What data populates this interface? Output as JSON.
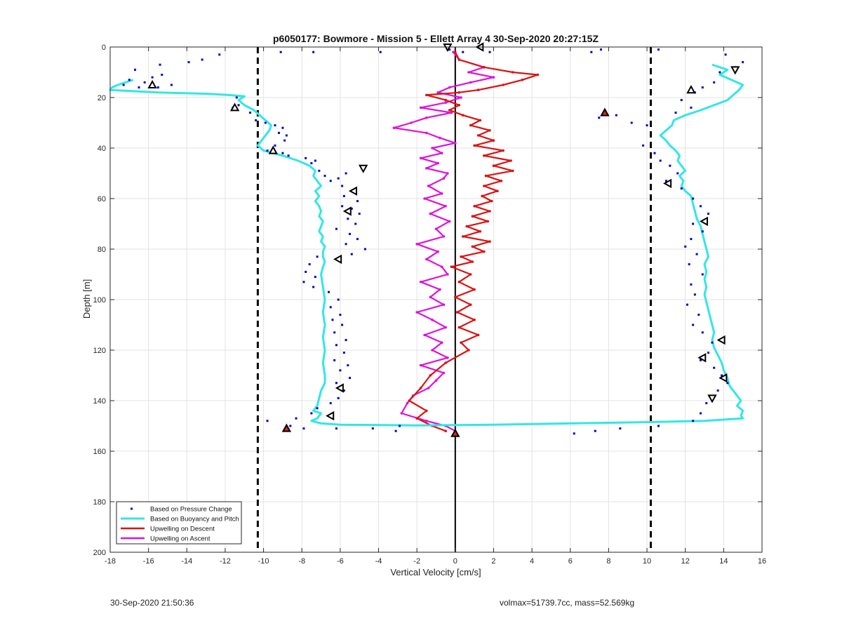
{
  "footer": {
    "timestamp": "30-Sep-2020 21:50:36",
    "info": "volmax=51739.7cc, mass=52.569kg"
  },
  "chart_data": {
    "type": "line",
    "title": "p6050177: Bowmore - Mission 5 - Ellett Array 4 30-Sep-2020 20:27:15Z",
    "xlabel": "Vertical Velocity [cm/s]",
    "ylabel": "Depth [m]",
    "xlim": [
      -18,
      16
    ],
    "ylim": [
      0,
      200
    ],
    "y_reversed": true,
    "grid": true,
    "xticks": [
      "-18",
      "-16",
      "-14",
      "-12",
      "-10",
      "-8",
      "-6",
      "-4",
      "-2",
      "0",
      "2",
      "4",
      "6",
      "8",
      "10",
      "12",
      "14",
      "16"
    ],
    "yticks": [
      "0",
      "20",
      "40",
      "60",
      "80",
      "100",
      "120",
      "140",
      "160",
      "180",
      "200"
    ],
    "legend": {
      "placement": "bottom-left",
      "entries": [
        "Based on Pressure Change",
        "Based on Buoyancy and Pitch",
        "Upwelling on Descent",
        "Upwelling on Ascent"
      ]
    },
    "colors": {
      "pressure": "#0000cc",
      "buoyancy": "#33e6e6",
      "descent": "#dd1111",
      "ascent": "#dd11dd",
      "grid": "#e3e3e3",
      "axis": "#262626"
    },
    "reference_lines": {
      "dashed_x": [
        -10.3,
        10.2
      ],
      "solid_x": [
        0
      ]
    },
    "series": [
      {
        "name": "Based on Buoyancy and Pitch",
        "x": [
          -16.8,
          -17.2,
          -17.6,
          -17.9,
          -18.0,
          -15.5,
          -13.0,
          -11.8,
          -11.0,
          -11.3,
          -11.0,
          -10.5,
          -10.2,
          -9.9,
          -9.6,
          -9.7,
          -9.9,
          -10.1,
          -10.3,
          -10.0,
          -9.0,
          -8.2,
          -7.6,
          -7.3,
          -7.4,
          -7.2,
          -7.0,
          -7.3,
          -7.1,
          -7.3,
          -7.1,
          -7.0,
          -7.1,
          -6.9,
          -7.0,
          -7.1,
          -6.9,
          -7.0,
          -6.8,
          -6.9,
          -6.9,
          -6.8,
          -6.9,
          -7.0,
          -6.9,
          -6.8,
          -6.9,
          -6.8,
          -6.9,
          -6.8,
          -6.9,
          -6.8,
          -6.8,
          -7.0,
          -7.1,
          -7.2,
          -7.4,
          -7.0,
          -7.2,
          -7.5,
          -7.0,
          -6.0,
          -2.0,
          2.0,
          6.0,
          10.0,
          13.0,
          15.0,
          14.9,
          15.0,
          14.7,
          14.9,
          14.6,
          14.3,
          14.2,
          14.0,
          13.9,
          13.7,
          13.5,
          13.4,
          13.5,
          13.4,
          13.3,
          13.2,
          13.1,
          13.0,
          13.1,
          13.0,
          13.1,
          13.0,
          13.2,
          13.1,
          13.0,
          12.9,
          12.8,
          12.6,
          12.5,
          12.4,
          12.3,
          12.0,
          11.8,
          11.9,
          11.7,
          12.0,
          11.8,
          11.6,
          11.7,
          11.5,
          11.2,
          11.0,
          10.7,
          11.0,
          11.3,
          11.4,
          12.0,
          12.8,
          13.5,
          14.2,
          14.5,
          14.8,
          15.0,
          14.4,
          13.8,
          14.2,
          13.4
        ],
        "y": [
          13,
          14,
          15,
          16,
          17,
          18,
          18.5,
          19,
          19.5,
          21,
          23,
          25,
          27,
          29,
          31,
          33,
          35,
          37,
          39,
          41,
          43,
          45,
          47,
          49,
          51,
          53,
          55,
          57,
          59,
          61,
          63,
          65,
          67,
          69,
          71,
          73,
          75,
          77,
          79,
          81,
          83,
          85,
          87,
          90,
          95,
          100,
          105,
          110,
          115,
          120,
          125,
          130,
          133,
          136,
          139,
          142,
          144,
          145,
          147,
          148,
          149,
          149.5,
          149.8,
          149.5,
          149,
          148.5,
          148,
          147,
          146,
          144,
          142,
          140,
          137,
          134,
          131,
          128,
          125,
          122,
          119,
          116,
          113,
          110,
          107,
          104,
          101,
          98,
          95,
          92,
          89,
          86,
          83,
          80,
          77,
          74,
          71,
          68,
          65,
          62,
          59,
          57,
          55,
          53,
          51,
          49,
          47,
          45,
          43,
          41,
          39,
          37,
          35,
          33,
          31,
          29,
          27,
          25,
          23,
          21,
          19,
          17,
          15,
          13,
          11,
          9,
          7
        ]
      },
      {
        "name": "Upwelling on Descent",
        "x": [
          0.0,
          0.2,
          1.5,
          3.0,
          4.3,
          3.5,
          2.5,
          1.2,
          0.2,
          -1.5,
          -0.5,
          0.2,
          -0.3,
          0.4,
          1.3,
          0.8,
          1.8,
          1.2,
          2.0,
          1.0,
          2.5,
          1.5,
          2.9,
          2.0,
          3.0,
          1.6,
          2.4,
          1.5,
          2.2,
          1.4,
          1.9,
          1.0,
          1.8,
          0.9,
          1.7,
          0.6,
          1.3,
          0.4,
          1.8,
          0.9,
          1.5,
          0.3,
          0.9,
          -0.2,
          0.8,
          0.2,
          1.0,
          0.0,
          0.8,
          0.1,
          1.0,
          0.2,
          1.2,
          0.3,
          0.7,
          -0.5,
          -1.3,
          -1.8,
          -2.4,
          -1.5,
          -2.0,
          -1.2,
          -0.5
        ],
        "y": [
          2,
          5,
          8,
          10,
          11,
          13,
          15,
          17,
          18,
          19,
          21,
          23,
          25,
          27,
          29,
          31,
          33,
          35,
          37,
          39,
          41,
          43,
          45,
          47,
          49,
          51,
          53,
          55,
          57,
          59,
          61,
          63,
          65,
          67,
          69,
          71,
          73,
          75,
          77,
          79,
          81,
          83,
          85,
          87,
          90,
          93,
          96,
          99,
          102,
          105,
          108,
          111,
          114,
          117,
          120,
          125,
          130,
          135,
          140,
          144,
          147,
          150,
          152
        ]
      },
      {
        "name": "Upwelling on Ascent",
        "x": [
          -0.1,
          0.2,
          1.5,
          0.7,
          2.0,
          0.8,
          -0.3,
          -0.9,
          0.3,
          -0.5,
          -1.8,
          -0.2,
          -1.5,
          -2.3,
          -3.2,
          -1.5,
          -0.8,
          0.0,
          -1.2,
          -0.7,
          -1.8,
          -0.9,
          -1.5,
          -0.4,
          -0.6,
          -1.4,
          -0.7,
          -1.6,
          -0.5,
          -1.3,
          -0.3,
          -1.0,
          -0.6,
          -2.0,
          -0.9,
          -1.5,
          -0.7,
          -0.4,
          -1.8,
          -0.8,
          -1.3,
          -0.6,
          -2.0,
          -1.2,
          -0.5,
          -1.6,
          -0.7,
          -1.2,
          -0.4,
          -1.8,
          -0.6,
          -1.0,
          -1.4,
          -2.2,
          -2.5,
          -2.8,
          -1.5,
          -0.5,
          0.0
        ],
        "y": [
          2,
          5,
          8,
          10,
          12,
          14,
          16,
          18,
          20,
          22,
          24,
          26,
          28,
          30,
          32,
          34,
          36,
          38,
          40,
          42,
          44,
          46,
          48,
          50,
          52,
          55,
          58,
          60,
          63,
          66,
          69,
          72,
          75,
          78,
          81,
          84,
          87,
          90,
          93,
          96,
          99,
          102,
          105,
          108,
          111,
          114,
          117,
          120,
          123,
          126,
          129,
          132,
          135,
          138,
          141,
          145,
          148,
          150,
          152
        ]
      }
    ],
    "scatter": {
      "name": "Based on Pressure Change",
      "points": [
        [
          -16.7,
          9
        ],
        [
          -15.4,
          7
        ],
        [
          -15.3,
          11
        ],
        [
          -15.8,
          12
        ],
        [
          -16.2,
          14
        ],
        [
          -17.0,
          13
        ],
        [
          -17.3,
          15
        ],
        [
          -16.5,
          16
        ],
        [
          -14.8,
          15
        ],
        [
          -13.9,
          6
        ],
        [
          -13.2,
          5
        ],
        [
          -12.3,
          3
        ],
        [
          -15.5,
          16
        ],
        [
          -11.4,
          20
        ],
        [
          -11.3,
          23
        ],
        [
          -11.6,
          24
        ],
        [
          -10.7,
          26
        ],
        [
          -10.4,
          29
        ],
        [
          -9.9,
          30
        ],
        [
          -9.4,
          31
        ],
        [
          -9.0,
          32
        ],
        [
          -9.2,
          34
        ],
        [
          -8.8,
          35
        ],
        [
          -8.9,
          37
        ],
        [
          -9.4,
          39
        ],
        [
          -9.8,
          41
        ],
        [
          -9.0,
          42
        ],
        [
          -8.7,
          43
        ],
        [
          -7.8,
          44
        ],
        [
          -7.5,
          46
        ],
        [
          -7.3,
          45
        ],
        [
          -7.1,
          49
        ],
        [
          -6.8,
          51
        ],
        [
          -6.5,
          53
        ],
        [
          -6.1,
          52
        ],
        [
          -5.7,
          50
        ],
        [
          -5.9,
          55
        ],
        [
          -5.3,
          57
        ],
        [
          -5.8,
          59
        ],
        [
          -5.1,
          61
        ],
        [
          -5.9,
          63
        ],
        [
          -5.4,
          64
        ],
        [
          -5.0,
          66
        ],
        [
          -5.6,
          68
        ],
        [
          -5.2,
          70
        ],
        [
          -6.2,
          72
        ],
        [
          -5.5,
          74
        ],
        [
          -5.1,
          76
        ],
        [
          -5.7,
          78
        ],
        [
          -4.7,
          80
        ],
        [
          -5.4,
          82
        ],
        [
          -6.1,
          84
        ],
        [
          -7.2,
          83
        ],
        [
          -7.6,
          86
        ],
        [
          -7.8,
          89
        ],
        [
          -7.3,
          91
        ],
        [
          -7.9,
          93
        ],
        [
          -7.4,
          95
        ],
        [
          -6.6,
          97
        ],
        [
          -6.1,
          100
        ],
        [
          -6.5,
          103
        ],
        [
          -6.0,
          106
        ],
        [
          -6.4,
          108
        ],
        [
          -5.9,
          110
        ],
        [
          -6.3,
          113
        ],
        [
          -5.7,
          116
        ],
        [
          -6.2,
          118
        ],
        [
          -5.8,
          121
        ],
        [
          -6.3,
          124
        ],
        [
          -5.6,
          126
        ],
        [
          -6.0,
          128
        ],
        [
          -5.5,
          131
        ],
        [
          -6.2,
          133
        ],
        [
          -5.8,
          136
        ],
        [
          -6.1,
          139
        ],
        [
          -6.5,
          141
        ],
        [
          -7.2,
          143
        ],
        [
          -7.5,
          145
        ],
        [
          -8.3,
          147
        ],
        [
          -9.8,
          148
        ],
        [
          -8.6,
          150
        ],
        [
          -7.9,
          151
        ],
        [
          -6.2,
          151
        ],
        [
          -4.3,
          151
        ],
        [
          -3.1,
          152
        ],
        [
          -2.9,
          150
        ],
        [
          -9.1,
          2
        ],
        [
          -7.4,
          2
        ],
        [
          -3.9,
          2
        ],
        [
          -0.3,
          1
        ],
        [
          0.4,
          2
        ],
        [
          1.8,
          2
        ],
        [
          7.1,
          2
        ],
        [
          7.6,
          1
        ],
        [
          10.6,
          1
        ],
        [
          7.5,
          28
        ],
        [
          8.4,
          27
        ],
        [
          9.2,
          30
        ],
        [
          10.0,
          31
        ],
        [
          9.8,
          39
        ],
        [
          10.4,
          42
        ],
        [
          10.7,
          45
        ],
        [
          11.2,
          47
        ],
        [
          11.6,
          50
        ],
        [
          11.0,
          53
        ],
        [
          11.8,
          56
        ],
        [
          12.4,
          60
        ],
        [
          12.8,
          63
        ],
        [
          13.2,
          66
        ],
        [
          12.4,
          70
        ],
        [
          12.9,
          73
        ],
        [
          12.3,
          76
        ],
        [
          12.0,
          79
        ],
        [
          12.6,
          82
        ],
        [
          12.2,
          86
        ],
        [
          12.9,
          90
        ],
        [
          12.3,
          94
        ],
        [
          12.5,
          98
        ],
        [
          12.1,
          102
        ],
        [
          12.7,
          106
        ],
        [
          12.4,
          110
        ],
        [
          12.9,
          113
        ],
        [
          13.4,
          117
        ],
        [
          13.2,
          121
        ],
        [
          12.8,
          124
        ],
        [
          13.5,
          127
        ],
        [
          13.9,
          130
        ],
        [
          14.2,
          133
        ],
        [
          13.7,
          136
        ],
        [
          13.1,
          141
        ],
        [
          12.8,
          145
        ],
        [
          12.4,
          148
        ],
        [
          10.6,
          150
        ],
        [
          8.6,
          151
        ],
        [
          7.3,
          152
        ],
        [
          6.2,
          153
        ],
        [
          13.8,
          10
        ],
        [
          14.6,
          8
        ],
        [
          15.0,
          6
        ],
        [
          14.1,
          3
        ],
        [
          12.5,
          18
        ],
        [
          11.8,
          21
        ],
        [
          12.3,
          24
        ],
        [
          11.5,
          26
        ],
        [
          12.9,
          16
        ],
        [
          13.5,
          14
        ]
      ]
    },
    "triangle_markers": [
      {
        "x": -15.8,
        "y": 15,
        "dir": "up"
      },
      {
        "x": -11.5,
        "y": 24,
        "dir": "up"
      },
      {
        "x": -9.5,
        "y": 41,
        "dir": "up"
      },
      {
        "x": -4.8,
        "y": 48,
        "dir": "down"
      },
      {
        "x": -5.3,
        "y": 57,
        "dir": "left"
      },
      {
        "x": -5.6,
        "y": 65,
        "dir": "left"
      },
      {
        "x": -6.1,
        "y": 84,
        "dir": "left"
      },
      {
        "x": -6.0,
        "y": 135,
        "dir": "left"
      },
      {
        "x": -6.5,
        "y": 146,
        "dir": "left"
      },
      {
        "x": -8.8,
        "y": 151,
        "dir": "up",
        "red": true
      },
      {
        "x": -0.4,
        "y": 0,
        "dir": "down"
      },
      {
        "x": 1.3,
        "y": 0,
        "dir": "left"
      },
      {
        "x": 0.0,
        "y": 153,
        "dir": "up",
        "red": true
      },
      {
        "x": 7.8,
        "y": 26,
        "dir": "up",
        "red": true
      },
      {
        "x": 12.3,
        "y": 17,
        "dir": "up"
      },
      {
        "x": 14.6,
        "y": 9,
        "dir": "down"
      },
      {
        "x": 11.1,
        "y": 54,
        "dir": "left"
      },
      {
        "x": 13.0,
        "y": 69,
        "dir": "left"
      },
      {
        "x": 13.9,
        "y": 116,
        "dir": "left"
      },
      {
        "x": 12.9,
        "y": 123,
        "dir": "left"
      },
      {
        "x": 14.0,
        "y": 131,
        "dir": "left"
      },
      {
        "x": 13.4,
        "y": 139,
        "dir": "down"
      }
    ]
  }
}
